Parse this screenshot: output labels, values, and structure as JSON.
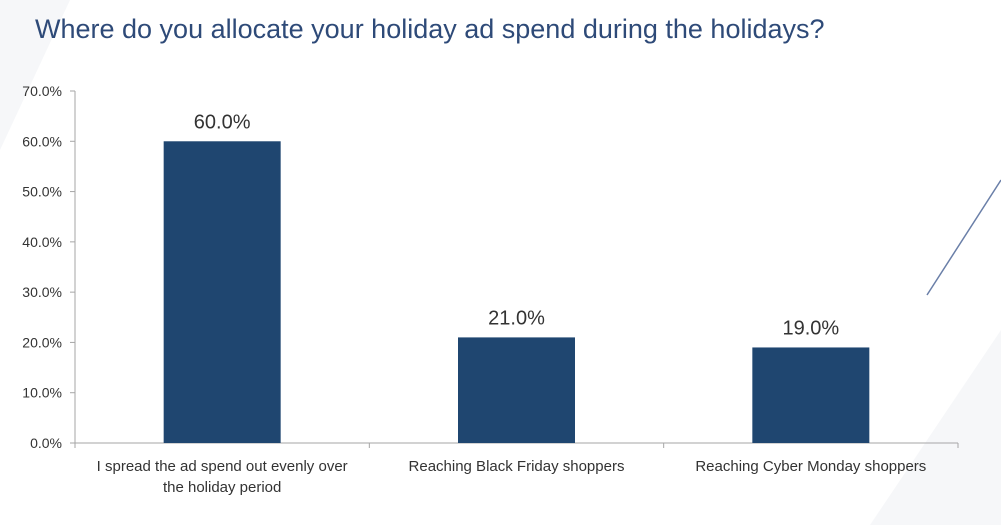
{
  "chart_data": {
    "type": "bar",
    "title": "Where do you allocate your holiday ad spend during the holidays?",
    "xlabel": "",
    "ylabel": "",
    "categories": [
      [
        "I spread the ad spend out evenly over",
        "the holiday period"
      ],
      [
        "Reaching Black Friday shoppers"
      ],
      [
        "Reaching Cyber Monday shoppers"
      ]
    ],
    "values": [
      60.0,
      21.0,
      19.0
    ],
    "data_labels": [
      "60.0%",
      "21.0%",
      "19.0%"
    ],
    "ylim": [
      0,
      70
    ],
    "yticks": [
      "0.0%",
      "10.0%",
      "20.0%",
      "30.0%",
      "40.0%",
      "50.0%",
      "60.0%",
      "70.0%"
    ],
    "grid": false,
    "legend": "none",
    "colors": {
      "bar": "#1f4670",
      "axis": "#a6a6a6",
      "title": "#2e4a78"
    }
  }
}
